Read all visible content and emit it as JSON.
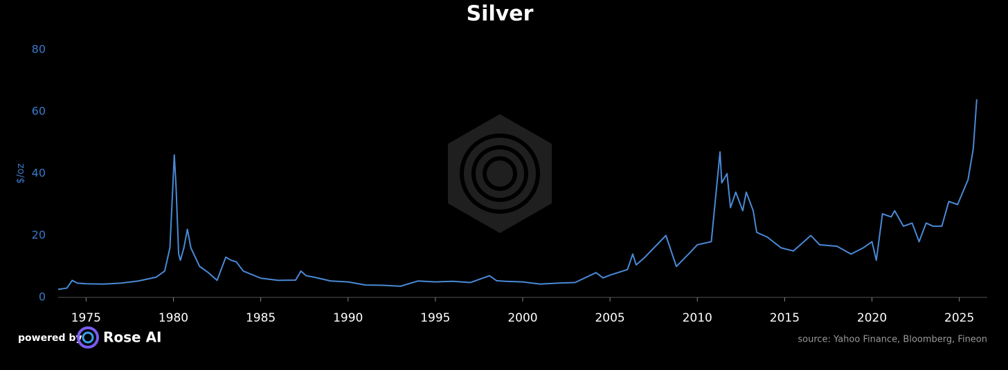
{
  "chart_data": {
    "type": "line",
    "title": "Silver",
    "y_label": "$/oz",
    "powered_by": "powered by",
    "brand": "Rose AI",
    "source": "source: Yahoo Finance, Bloomberg, Fineon",
    "color": "#4a8ad6",
    "xlim": [
      1973.4,
      2026.6
    ],
    "xticks": [
      1975,
      1980,
      1985,
      1990,
      1995,
      2000,
      2005,
      2010,
      2015,
      2020,
      2025
    ],
    "ylim": [
      0,
      80
    ],
    "yticks": [
      0,
      20,
      40,
      60,
      80
    ],
    "grid": false,
    "x": [
      1973.4,
      1973.9,
      1974.2,
      1974.5,
      1975,
      1976,
      1977,
      1978,
      1979,
      1979.5,
      1979.8,
      1980.05,
      1980.15,
      1980.3,
      1980.4,
      1980.6,
      1980.8,
      1981.0,
      1981.5,
      1982,
      1982.5,
      1983,
      1983.3,
      1983.6,
      1984,
      1985,
      1986,
      1987.0,
      1987.3,
      1987.6,
      1988,
      1989,
      1990,
      1991,
      1992,
      1993,
      1994,
      1995,
      1996,
      1997,
      1998.1,
      1998.5,
      1999,
      2000,
      2001,
      2002,
      2003,
      2004.2,
      2004.6,
      2005,
      2006.0,
      2006.3,
      2006.5,
      2007,
      2008.2,
      2008.8,
      2009.5,
      2010,
      2010.8,
      2011.3,
      2011.4,
      2011.7,
      2011.9,
      2012.2,
      2012.6,
      2012.8,
      2013.2,
      2013.4,
      2014,
      2014.8,
      2015.5,
      2016.5,
      2017,
      2018,
      2018.8,
      2019.5,
      2020.0,
      2020.25,
      2020.6,
      2021.1,
      2021.3,
      2021.8,
      2022.3,
      2022.7,
      2023.1,
      2023.5,
      2024.0,
      2024.4,
      2024.9,
      2025.2,
      2025.5,
      2025.8,
      2026.0
    ],
    "values": [
      2.6,
      3.0,
      5.5,
      4.6,
      4.4,
      4.3,
      4.6,
      5.3,
      6.5,
      8.5,
      16,
      46,
      36,
      14,
      12,
      16,
      22,
      16,
      10,
      8,
      5.5,
      13,
      12,
      11.5,
      8.5,
      6.2,
      5.5,
      5.6,
      8.5,
      7,
      6.6,
      5.3,
      5.0,
      4.0,
      3.9,
      3.6,
      5.3,
      5.0,
      5.2,
      4.8,
      7.0,
      5.4,
      5.2,
      5.0,
      4.3,
      4.6,
      4.8,
      8.0,
      6.3,
      7.2,
      9.0,
      14,
      10.5,
      13,
      20,
      10,
      14,
      17,
      18,
      47,
      37,
      40,
      29,
      34,
      28,
      34,
      28,
      21,
      19.5,
      16,
      15,
      20,
      17,
      16.5,
      14,
      16,
      18,
      12,
      27,
      26,
      28,
      23,
      24,
      18,
      24,
      23,
      23,
      31,
      30,
      34,
      38,
      48,
      64
    ]
  }
}
